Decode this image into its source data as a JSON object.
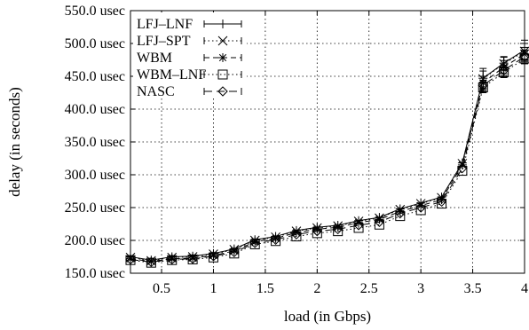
{
  "chart_data": {
    "type": "line",
    "title": "",
    "xlabel": "load (in Gbps)",
    "ylabel": "delay (in seconds)",
    "xlim": [
      0.2,
      4.0
    ],
    "ylim": [
      150,
      550
    ],
    "xticks": [
      0.5,
      1,
      1.5,
      2,
      2.5,
      3,
      3.5,
      4
    ],
    "xtick_labels": [
      "0.5",
      "1",
      "1.5",
      "2",
      "2.5",
      "3",
      "3.5",
      "4"
    ],
    "yticks": [
      150,
      200,
      250,
      300,
      350,
      400,
      450,
      500,
      550
    ],
    "ytick_labels": [
      "150.0 usec",
      "200.0 usec",
      "250.0 usec",
      "300.0 usec",
      "350.0 usec",
      "400.0 usec",
      "450.0 usec",
      "500.0 usec",
      "550.0 usec"
    ],
    "grid": true,
    "legend_position": "top-left",
    "x": [
      0.2,
      0.4,
      0.6,
      0.8,
      1.0,
      1.2,
      1.4,
      1.6,
      1.8,
      2.0,
      2.2,
      2.4,
      2.6,
      2.8,
      3.0,
      3.2,
      3.4,
      3.6,
      3.8,
      4.0
    ],
    "series": [
      {
        "name": "LFJ–LNF",
        "marker": "plus",
        "dash": "solid",
        "values": [
          175,
          170,
          175,
          176,
          180,
          187,
          201,
          206,
          215,
          220,
          223,
          230,
          235,
          248,
          257,
          266,
          318,
          447,
          470,
          490
        ],
        "err": [
          0,
          0,
          0,
          0,
          0,
          0,
          0,
          0,
          0,
          0,
          0,
          0,
          0,
          0,
          0,
          0,
          0,
          15,
          10,
          15
        ]
      },
      {
        "name": "LFJ–SPT",
        "marker": "x",
        "dash": "dotted",
        "values": [
          174,
          169,
          174,
          175,
          179,
          186,
          200,
          205,
          214,
          219,
          222,
          229,
          234,
          247,
          256,
          265,
          317,
          446,
          469,
          488
        ],
        "err": [
          0,
          0,
          0,
          0,
          0,
          0,
          0,
          0,
          0,
          0,
          0,
          0,
          0,
          0,
          0,
          0,
          0,
          12,
          10,
          12
        ]
      },
      {
        "name": "WBM",
        "marker": "star",
        "dash": "dashed",
        "values": [
          172,
          168,
          172,
          173,
          177,
          184,
          198,
          203,
          212,
          217,
          220,
          227,
          232,
          244,
          253,
          262,
          315,
          440,
          464,
          484
        ],
        "err": [
          0,
          0,
          0,
          0,
          0,
          0,
          0,
          0,
          0,
          0,
          0,
          0,
          0,
          0,
          0,
          0,
          0,
          10,
          10,
          10
        ]
      },
      {
        "name": "WBM–LNF",
        "marker": "square",
        "dash": "dotted",
        "values": [
          170,
          166,
          170,
          171,
          174,
          180,
          194,
          199,
          206,
          211,
          214,
          219,
          224,
          237,
          246,
          256,
          306,
          433,
          456,
          477
        ],
        "err": [
          0,
          0,
          0,
          0,
          0,
          0,
          0,
          0,
          0,
          0,
          0,
          0,
          0,
          0,
          0,
          0,
          0,
          8,
          8,
          8
        ]
      },
      {
        "name": "NASC",
        "marker": "diamond",
        "dash": "longdash",
        "values": [
          171,
          167,
          171,
          172,
          176,
          182,
          196,
          201,
          209,
          214,
          217,
          223,
          228,
          241,
          250,
          259,
          310,
          436,
          459,
          480
        ],
        "err": [
          0,
          0,
          0,
          0,
          0,
          0,
          0,
          0,
          0,
          0,
          0,
          0,
          0,
          0,
          0,
          0,
          0,
          8,
          8,
          8
        ]
      }
    ]
  }
}
